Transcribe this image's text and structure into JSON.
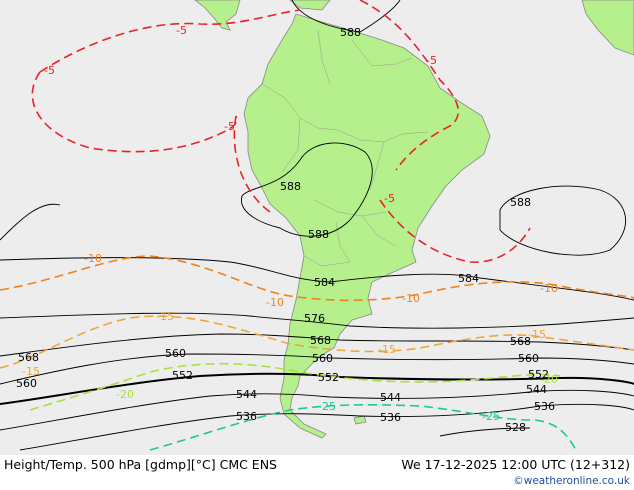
{
  "footer": {
    "title": "Height/Temp. 500 hPa [gdmp][°C] CMC ENS",
    "valid": "We 17-12-2025 12:00 UTC (12+312)",
    "credit": "©weatheronline.co.uk"
  },
  "colors": {
    "ocean": "#ededed",
    "land": "#b5f08c",
    "coast": "#888888",
    "height_contour": "#000000",
    "temp_minus5": "#e8232a",
    "temp_minus10": "#f0821e",
    "temp_minus15": "#f0a43c",
    "temp_minus20": "#a8e03c",
    "temp_minus25": "#1ec896"
  },
  "height_labels": [
    "588",
    "588",
    "588",
    "588",
    "584",
    "584",
    "576",
    "568",
    "568",
    "568",
    "560",
    "560",
    "560",
    "560",
    "552",
    "552",
    "552",
    "544",
    "544",
    "544",
    "536",
    "536",
    "536",
    "528"
  ],
  "temp_labels": [
    "-5",
    "-5",
    "-5",
    "-5",
    "-5",
    "-10",
    "-10",
    "-10",
    "-10",
    "-15",
    "-15",
    "-15",
    "-15",
    "-20",
    "-20",
    "-25",
    "-25"
  ]
}
